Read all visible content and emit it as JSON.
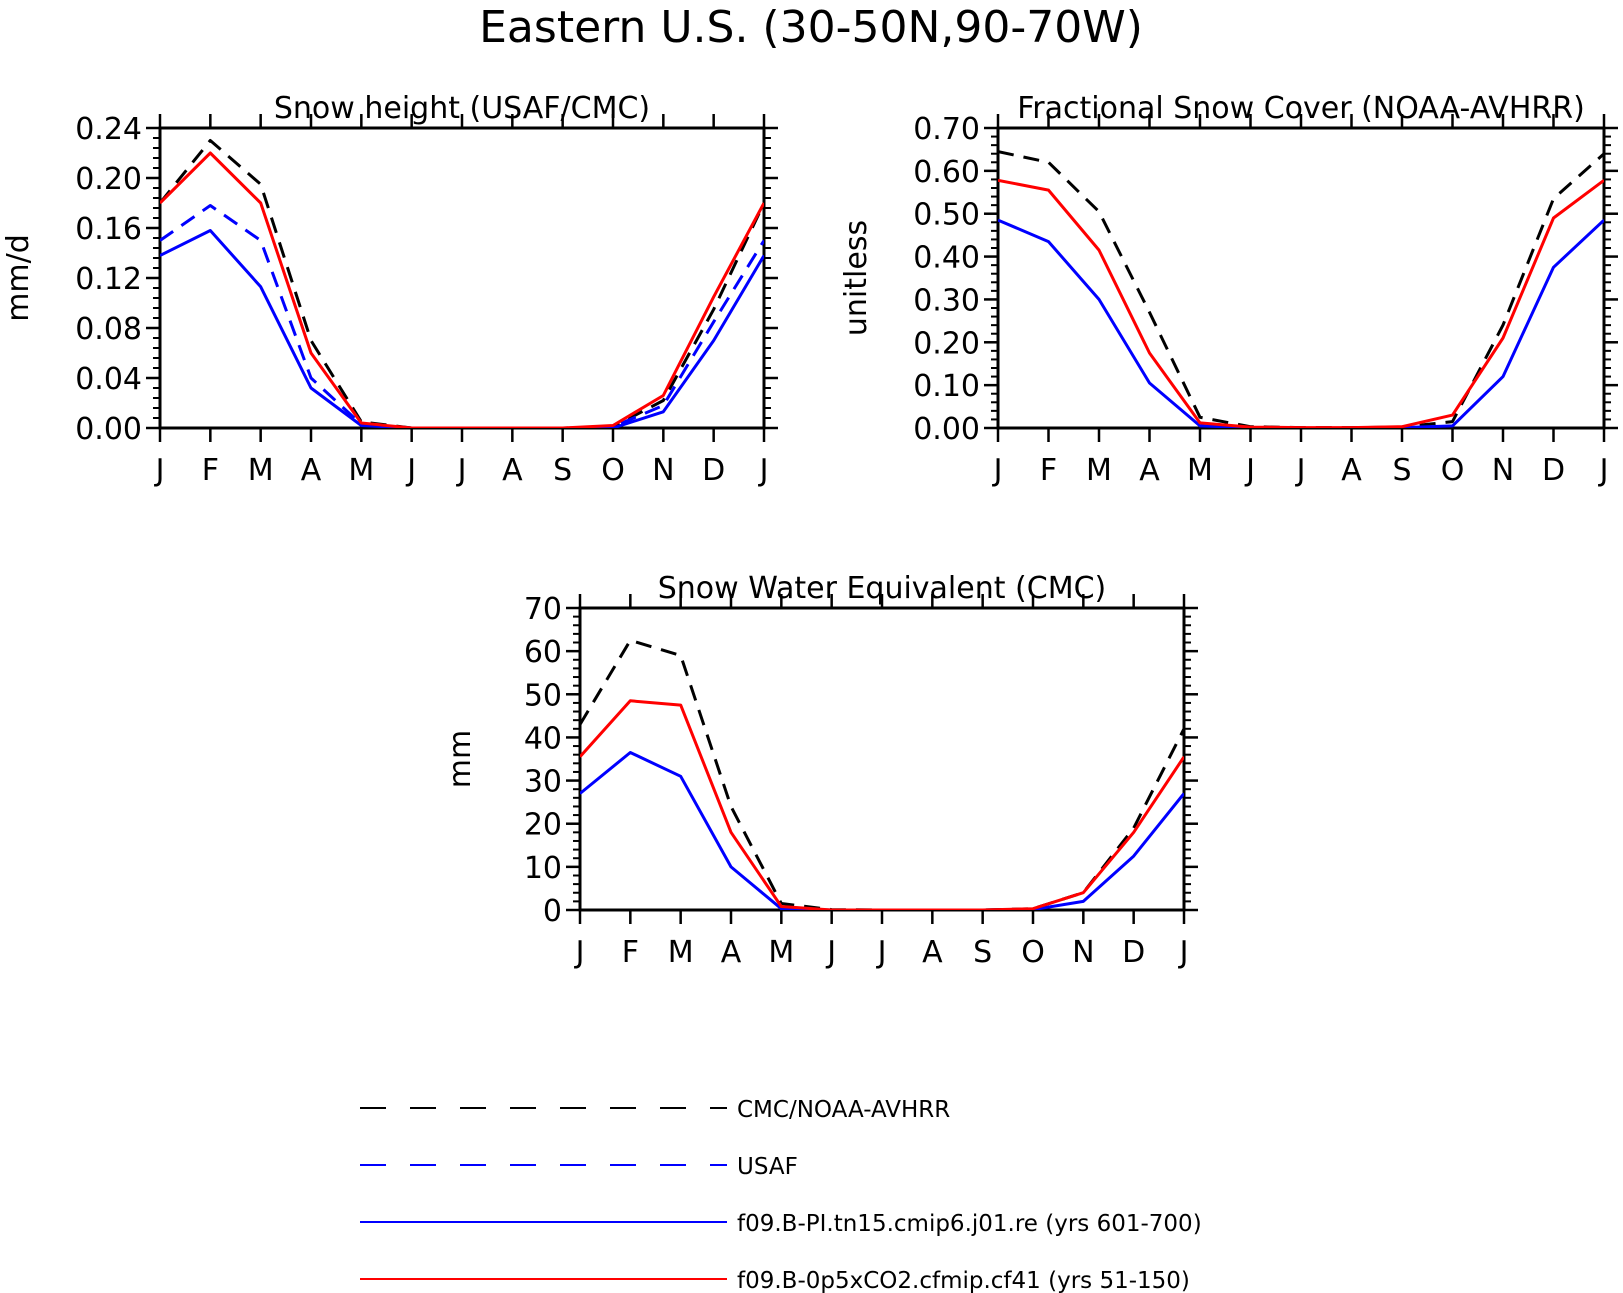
{
  "figure_title": "Eastern U.S. (30-50N,90-70W)",
  "chart_data": [
    {
      "type": "line",
      "title": "Snow height (USAF/CMC)",
      "xlabel": "",
      "ylabel": "mm/d",
      "categories": [
        "J",
        "F",
        "M",
        "A",
        "M",
        "J",
        "J",
        "A",
        "S",
        "O",
        "N",
        "D",
        "J"
      ],
      "ylim": [
        0,
        0.24
      ],
      "yticks": [
        0.0,
        0.04,
        0.08,
        0.12,
        0.16,
        0.2,
        0.24
      ],
      "ytick_labels": [
        "0.00",
        "0.04",
        "0.08",
        "0.12",
        "0.16",
        "0.20",
        "0.24"
      ],
      "series": [
        {
          "name": "CMC/NOAA-AVHRR",
          "values": [
            0.18,
            0.23,
            0.195,
            0.07,
            0.005,
            0.0,
            0.0,
            0.0,
            0.0,
            0.001,
            0.022,
            0.095,
            0.18
          ]
        },
        {
          "name": "USAF",
          "values": [
            0.15,
            0.178,
            0.15,
            0.04,
            0.003,
            0.0,
            0.0,
            0.0,
            0.0,
            0.001,
            0.018,
            0.085,
            0.15
          ]
        },
        {
          "name": "f09.B-PI.tn15.cmip6.j01.re (yrs 601-700)",
          "values": [
            0.138,
            0.158,
            0.113,
            0.032,
            0.002,
            0.0,
            0.0,
            0.0,
            0.0,
            0.0,
            0.013,
            0.07,
            0.138
          ]
        },
        {
          "name": "f09.B-0p5xCO2.cfmip.cf41 (yrs 51-150)",
          "values": [
            0.18,
            0.22,
            0.18,
            0.06,
            0.004,
            0.0,
            0.0,
            0.0,
            0.0,
            0.002,
            0.026,
            0.105,
            0.18
          ]
        }
      ]
    },
    {
      "type": "line",
      "title": "Fractional Snow Cover (NOAA-AVHRR)",
      "xlabel": "",
      "ylabel": "unitless",
      "categories": [
        "J",
        "F",
        "M",
        "A",
        "M",
        "J",
        "J",
        "A",
        "S",
        "O",
        "N",
        "D",
        "J"
      ],
      "ylim": [
        0,
        0.7
      ],
      "yticks": [
        0.0,
        0.1,
        0.2,
        0.3,
        0.4,
        0.5,
        0.6,
        0.7
      ],
      "ytick_labels": [
        "0.00",
        "0.10",
        "0.20",
        "0.30",
        "0.40",
        "0.50",
        "0.60",
        "0.70"
      ],
      "series": [
        {
          "name": "CMC/NOAA-AVHRR",
          "values": [
            0.645,
            0.62,
            0.505,
            0.27,
            0.025,
            0.003,
            0.001,
            0.001,
            0.002,
            0.015,
            0.24,
            0.535,
            0.64
          ]
        },
        {
          "name": "f09.B-PI.tn15.cmip6.j01.re (yrs 601-700)",
          "values": [
            0.485,
            0.435,
            0.3,
            0.105,
            0.005,
            0.001,
            0.0,
            0.0,
            0.001,
            0.005,
            0.12,
            0.375,
            0.485
          ]
        },
        {
          "name": "f09.B-0p5xCO2.cfmip.cf41 (yrs 51-150)",
          "values": [
            0.578,
            0.555,
            0.415,
            0.175,
            0.012,
            0.002,
            0.001,
            0.001,
            0.003,
            0.03,
            0.21,
            0.49,
            0.578
          ]
        }
      ]
    },
    {
      "type": "line",
      "title": "Snow Water Equivalent (CMC)",
      "xlabel": "",
      "ylabel": "mm",
      "categories": [
        "J",
        "F",
        "M",
        "A",
        "M",
        "J",
        "J",
        "A",
        "S",
        "O",
        "N",
        "D",
        "J"
      ],
      "ylim": [
        0,
        70
      ],
      "yticks": [
        0,
        10,
        20,
        30,
        40,
        50,
        60,
        70
      ],
      "ytick_labels": [
        "0",
        "10",
        "20",
        "30",
        "40",
        "50",
        "60",
        "70"
      ],
      "series": [
        {
          "name": "CMC/NOAA-AVHRR",
          "values": [
            43,
            62.5,
            59,
            24,
            1.5,
            0.1,
            0,
            0,
            0,
            0.3,
            4,
            19,
            42
          ]
        },
        {
          "name": "f09.B-PI.tn15.cmip6.j01.re (yrs 601-700)",
          "values": [
            27,
            36.5,
            31,
            10,
            0.3,
            0,
            0,
            0,
            0,
            0.1,
            2,
            12.5,
            27
          ]
        },
        {
          "name": "f09.B-0p5xCO2.cfmip.cf41 (yrs 51-150)",
          "values": [
            35.5,
            48.5,
            47.5,
            18,
            0.8,
            0,
            0,
            0,
            0,
            0.3,
            4,
            18,
            35.5
          ]
        }
      ]
    }
  ],
  "legend": {
    "placement": "bottom",
    "items": [
      {
        "label": "CMC/NOAA-AVHRR",
        "color": "#000000",
        "style": "dashed"
      },
      {
        "label": "USAF",
        "color": "#0000ff",
        "style": "dashed"
      },
      {
        "label": "f09.B-PI.tn15.cmip6.j01.re (yrs 601-700)",
        "color": "#0000ff",
        "style": "solid"
      },
      {
        "label": "f09.B-0p5xCO2.cfmip.cf41 (yrs 51-150)",
        "color": "#ff0000",
        "style": "solid"
      }
    ]
  },
  "series_styles": {
    "CMC/NOAA-AVHRR": {
      "color": "#000000",
      "dash": "dashed"
    },
    "USAF": {
      "color": "#0000ff",
      "dash": "dashed"
    },
    "f09.B-PI.tn15.cmip6.j01.re (yrs 601-700)": {
      "color": "#0000ff",
      "dash": "solid"
    },
    "f09.B-0p5xCO2.cfmip.cf41 (yrs 51-150)": {
      "color": "#ff0000",
      "dash": "solid"
    }
  }
}
